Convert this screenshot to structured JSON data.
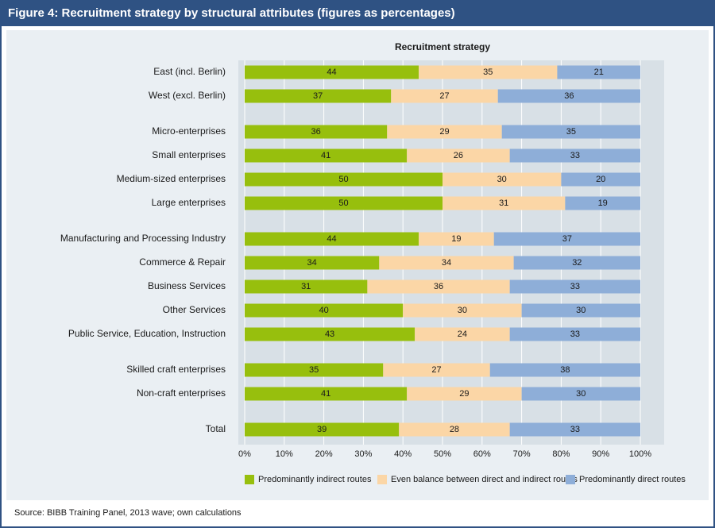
{
  "chart_data": {
    "type": "stacked_bar_horizontal",
    "title": "Figure 4: Recruitment strategy by structural attributes (figures as percentages)",
    "subtitle": "Recruitment strategy",
    "source": "Source: BIBB Training Panel, 2013 wave; own calculations",
    "categories": [
      "East (incl. Berlin)",
      "West (excl. Berlin)",
      null,
      "Micro-enterprises",
      "Small enterprises",
      "Medium-sized enterprises",
      "Large enterprises",
      null,
      "Manufacturing and Processing Industry",
      "Commerce & Repair",
      "Business Services",
      "Other Services",
      "Public Service, Education, Instruction",
      null,
      "Skilled craft enterprises",
      "Non-craft enterprises",
      null,
      "Total"
    ],
    "series": [
      {
        "name": "Predominantly indirect routes",
        "color": "#97bf0d",
        "values": [
          44,
          37,
          null,
          36,
          41,
          50,
          50,
          null,
          44,
          34,
          31,
          40,
          43,
          null,
          35,
          41,
          null,
          39
        ]
      },
      {
        "name": "Even balance between direct and indirect routes",
        "color": "#fbd6a6",
        "values": [
          35,
          27,
          null,
          29,
          26,
          30,
          31,
          null,
          19,
          34,
          36,
          30,
          24,
          null,
          27,
          29,
          null,
          28
        ]
      },
      {
        "name": "Predominantly direct routes",
        "color": "#8eaed8",
        "values": [
          21,
          36,
          null,
          35,
          33,
          20,
          19,
          null,
          37,
          32,
          33,
          30,
          33,
          null,
          38,
          30,
          null,
          33
        ]
      }
    ],
    "xlim": [
      0,
      100
    ],
    "xticks": [
      {
        "value": 0,
        "label": "0%"
      },
      {
        "value": 10,
        "label": "10%"
      },
      {
        "value": 20,
        "label": "20%"
      },
      {
        "value": 30,
        "label": "30%"
      },
      {
        "value": 40,
        "label": "40%"
      },
      {
        "value": 50,
        "label": "50%"
      },
      {
        "value": 60,
        "label": "60%"
      },
      {
        "value": 70,
        "label": "70%"
      },
      {
        "value": 80,
        "label": "80%"
      },
      {
        "value": 90,
        "label": "90%"
      },
      {
        "value": 100,
        "label": "100%"
      }
    ],
    "grid": true
  }
}
